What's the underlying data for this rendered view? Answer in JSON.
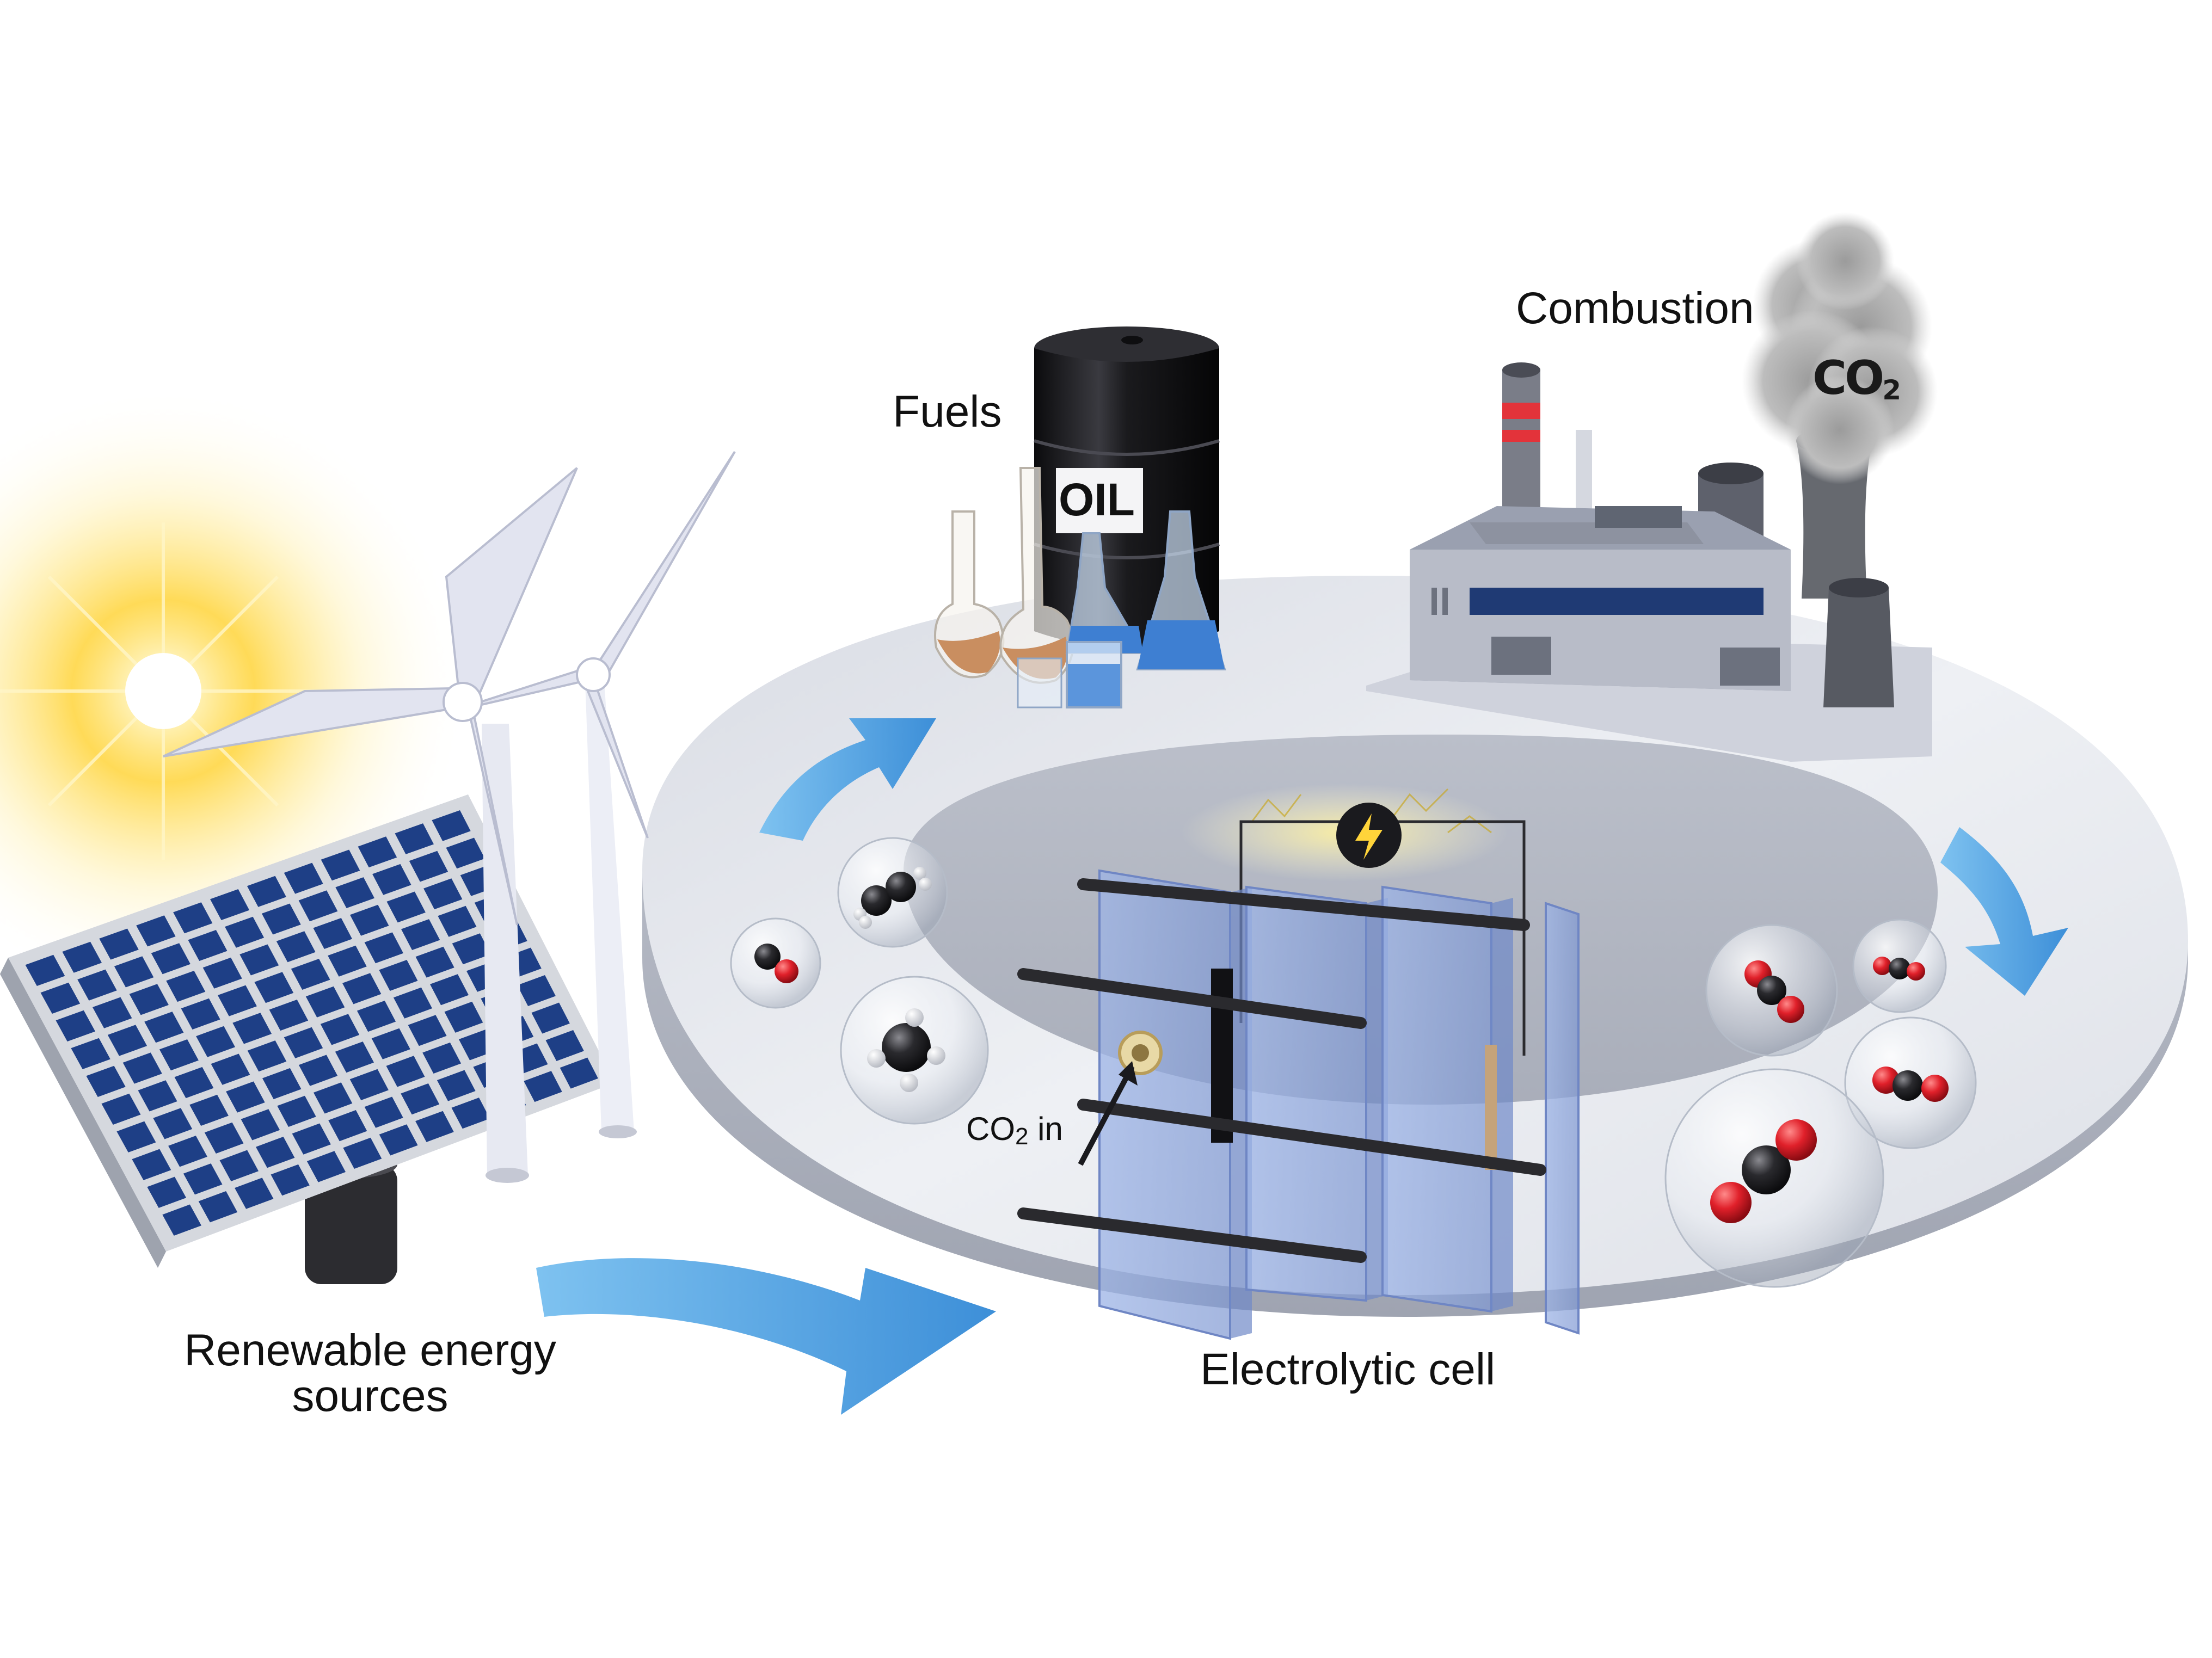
{
  "labels": {
    "fuels": "Fuels",
    "combustion": "Combustion",
    "renewable_line1": "Renewable energy",
    "renewable_line2": "sources",
    "electrolytic_cell": "Electrolytic cell",
    "co2_in": "CO",
    "co2_in_sub": "2",
    "co2_in_suffix": " in",
    "oil": "OIL",
    "co2_smoke": "CO",
    "co2_smoke_sub": "2"
  },
  "icons": {
    "sun": "sun-icon",
    "solar_panel": "solar-panel-icon",
    "wind_turbines": "wind-turbine-icon",
    "oil_barrel": "oil-barrel-icon",
    "flasks": "flask-icon",
    "factory": "factory-icon",
    "smoke": "smoke-cloud-icon",
    "electrolyzer": "electrolytic-cell-icon",
    "power_source": "lightning-icon",
    "flow_arrows": "cycle-arrow-icon",
    "molecules": "molecule-bubble-icon"
  },
  "colors": {
    "ring_top": "#e4e6ec",
    "ring_side": "#b4b8c4",
    "arrow_blue": "#4f9ee0",
    "solar_cell": "#1e3f86",
    "oxygen_red": "#e0202a",
    "carbon_black": "#2a2a2e",
    "cell_plate": "#8ea8dc",
    "sun_glow": "#ffd43a"
  }
}
